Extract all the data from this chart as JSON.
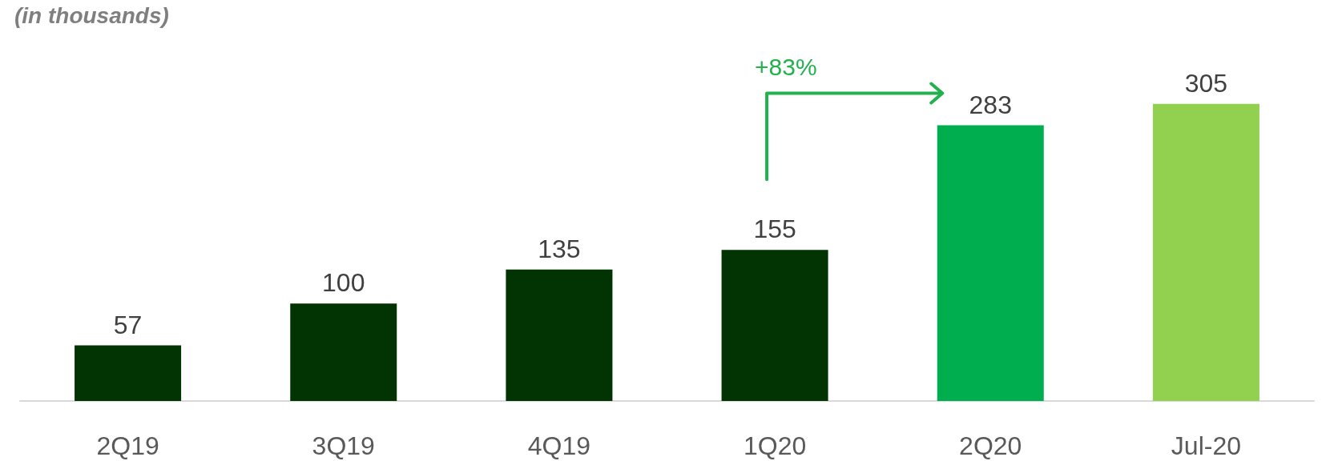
{
  "chart_data": {
    "type": "bar",
    "title": "(in thousands)",
    "categories": [
      "2Q19",
      "3Q19",
      "4Q19",
      "1Q20",
      "2Q20",
      "Jul-20"
    ],
    "values": [
      57,
      100,
      135,
      155,
      283,
      305
    ],
    "colors": [
      "#023302",
      "#023302",
      "#023302",
      "#023302",
      "#00ad4f",
      "#92d050"
    ],
    "data_labels": true,
    "annotations": [
      "+83%"
    ]
  }
}
